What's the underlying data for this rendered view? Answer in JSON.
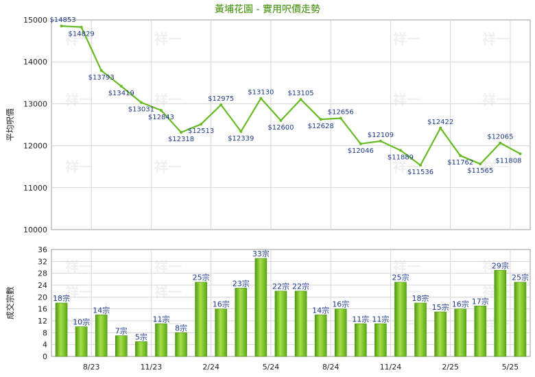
{
  "chart_title": "黃埔花園 - 實用呎價走勢",
  "watermark_text": "祥一",
  "chart_data": [
    {
      "type": "line",
      "title": "黃埔花園 - 實用呎價走勢",
      "ylabel": "平均呎價",
      "ylim": [
        10000,
        15000
      ],
      "yticks": [
        10000,
        11000,
        12000,
        13000,
        14000,
        15000
      ],
      "xtick_labels": [
        "8/23",
        "11/23",
        "2/24",
        "5/24",
        "8/24",
        "11/24",
        "2/25",
        "5/25"
      ],
      "value_prefix": "$",
      "values": [
        14853,
        14829,
        13793,
        13419,
        13031,
        12843,
        12318,
        12513,
        12975,
        12339,
        13130,
        12600,
        13105,
        12628,
        12656,
        12046,
        12109,
        11889,
        11536,
        12422,
        11762,
        11565,
        12065,
        11808
      ],
      "color": "#66bb22"
    },
    {
      "type": "bar",
      "ylabel": "成交宗數",
      "ylim": [
        0,
        36
      ],
      "yticks": [
        0,
        4,
        8,
        12,
        16,
        20,
        24,
        28,
        32,
        36
      ],
      "xtick_labels": [
        "8/23",
        "11/23",
        "2/24",
        "5/24",
        "8/24",
        "11/24",
        "2/25",
        "5/25"
      ],
      "value_suffix": "宗",
      "values": [
        18,
        10,
        14,
        7,
        5,
        11,
        8,
        25,
        16,
        23,
        33,
        22,
        22,
        14,
        16,
        11,
        11,
        25,
        18,
        15,
        16,
        17,
        29,
        25
      ],
      "color": "#7fcc22"
    }
  ]
}
